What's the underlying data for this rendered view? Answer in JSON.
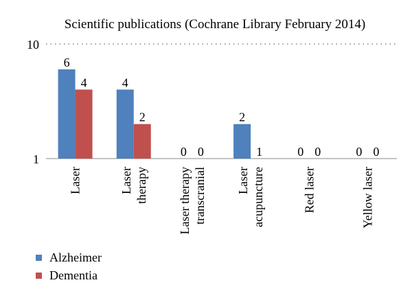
{
  "chart_data": {
    "type": "bar",
    "title": "Scientific publications (Cochrane Library February 2014)",
    "categories": [
      [
        "Laser"
      ],
      [
        "Laser",
        "therapy"
      ],
      [
        "Laser therapy",
        "transcranial"
      ],
      [
        "Laser",
        "acupuncture"
      ],
      [
        "Red laser"
      ],
      [
        "Yellow laser"
      ]
    ],
    "series": [
      {
        "name": "Alzheimer",
        "values": [
          6,
          4,
          0,
          2,
          0,
          0
        ],
        "color": "#4f81bd"
      },
      {
        "name": "Dementia",
        "values": [
          4,
          2,
          0,
          1,
          0,
          0
        ],
        "color": "#c0504d"
      }
    ],
    "y_scale": "log",
    "ylim": [
      1,
      10
    ],
    "yticks": [
      "1",
      "10"
    ],
    "grid": "dotted line at 10",
    "legend_position": "bottom-left"
  }
}
